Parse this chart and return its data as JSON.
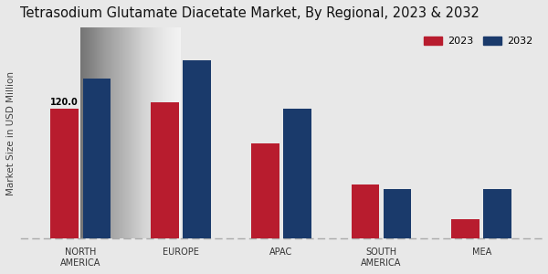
{
  "title": "Tetrasodium Glutamate Diacetate Market, By Regional, 2023 & 2032",
  "categories": [
    "NORTH\nAMERICA",
    "EUROPE",
    "APAC",
    "SOUTH\nAMERICA",
    "MEA"
  ],
  "values_2023": [
    120.0,
    126.0,
    88.0,
    50.0,
    18.0
  ],
  "values_2032": [
    148.0,
    165.0,
    120.0,
    46.0,
    46.0
  ],
  "color_2023": "#b81c2e",
  "color_2032": "#1a3a6b",
  "ylabel": "Market Size in USD Million",
  "legend_labels": [
    "2023",
    "2032"
  ],
  "annotation_label": "120.0",
  "annotation_bar": 0,
  "bar_width": 0.28,
  "ylim": [
    0,
    195
  ],
  "title_fontsize": 10.5,
  "axis_fontsize": 7.5,
  "tick_fontsize": 7
}
